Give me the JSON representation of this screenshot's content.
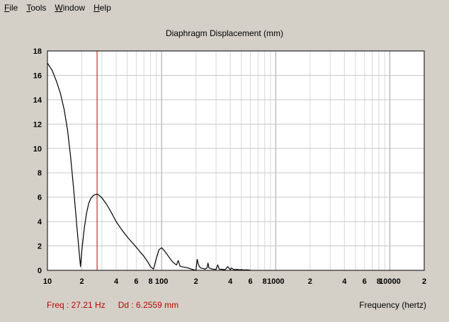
{
  "menu": [
    {
      "label": "File",
      "accel": "F"
    },
    {
      "label": "Tools",
      "accel": "T"
    },
    {
      "label": "Window",
      "accel": "W"
    },
    {
      "label": "Help",
      "accel": "H"
    }
  ],
  "status": {
    "freq": "Freq : 27.21 Hz",
    "dd": "Dd : 6.2559 mm"
  },
  "chart_data": {
    "type": "line",
    "title": "Diaphragm Displacement (mm)",
    "xlabel": "Frequency (hertz)",
    "ylabel": "",
    "xscale": "log",
    "xlim": [
      10,
      20000
    ],
    "ylim": [
      0,
      18
    ],
    "yticks": [
      0,
      2,
      4,
      6,
      8,
      10,
      12,
      14,
      16,
      18
    ],
    "xtick_labels": [
      {
        "x": 10,
        "label": "10"
      },
      {
        "x": 20,
        "label": "2"
      },
      {
        "x": 40,
        "label": "4"
      },
      {
        "x": 60,
        "label": "6"
      },
      {
        "x": 80,
        "label": "8"
      },
      {
        "x": 100,
        "label": "100"
      },
      {
        "x": 200,
        "label": "2"
      },
      {
        "x": 400,
        "label": "4"
      },
      {
        "x": 600,
        "label": "6"
      },
      {
        "x": 800,
        "label": "8"
      },
      {
        "x": 1000,
        "label": "1000"
      },
      {
        "x": 2000,
        "label": "2"
      },
      {
        "x": 4000,
        "label": "4"
      },
      {
        "x": 6000,
        "label": "6"
      },
      {
        "x": 8000,
        "label": "8"
      },
      {
        "x": 10000,
        "label": "10000"
      },
      {
        "x": 20000,
        "label": "2"
      }
    ],
    "grid": true,
    "cursor": {
      "x": 27.21,
      "color": "#c00000"
    },
    "series": [
      {
        "color": "#000000",
        "x": [
          10,
          11,
          12,
          13,
          14,
          15,
          16,
          17,
          18,
          19,
          19.5,
          20,
          21,
          22,
          23,
          24,
          25,
          26,
          27.2,
          28,
          30,
          33,
          36,
          40,
          45,
          50,
          55,
          60,
          65,
          70,
          75,
          80,
          85,
          90,
          95,
          100,
          105,
          110,
          115,
          120,
          125,
          130,
          135,
          140,
          145,
          150,
          160,
          170,
          180,
          190,
          200,
          205,
          210,
          215,
          220,
          230,
          240,
          250,
          255,
          260,
          270,
          280,
          300,
          310,
          320,
          340,
          360,
          380,
          400,
          410,
          430,
          460,
          480,
          500,
          520,
          560,
          600
        ],
        "y": [
          17.0,
          16.4,
          15.5,
          14.5,
          13.2,
          11.5,
          9.2,
          6.6,
          3.9,
          1.4,
          0.3,
          1.6,
          3.4,
          4.7,
          5.5,
          5.9,
          6.1,
          6.2,
          6.256,
          6.2,
          5.95,
          5.4,
          4.8,
          4.0,
          3.3,
          2.75,
          2.3,
          1.9,
          1.5,
          1.15,
          0.75,
          0.3,
          0.1,
          1.0,
          1.7,
          1.85,
          1.65,
          1.4,
          1.15,
          0.9,
          0.7,
          0.55,
          0.45,
          0.8,
          0.35,
          0.3,
          0.25,
          0.2,
          0.12,
          0.05,
          0.0,
          0.9,
          0.5,
          0.3,
          0.2,
          0.15,
          0.1,
          0.2,
          0.6,
          0.2,
          0.15,
          0.1,
          0.08,
          0.45,
          0.1,
          0.08,
          0.05,
          0.3,
          0.05,
          0.2,
          0.05,
          0.08,
          0.04,
          0.06,
          0.03,
          0.04,
          0.02
        ]
      }
    ]
  }
}
